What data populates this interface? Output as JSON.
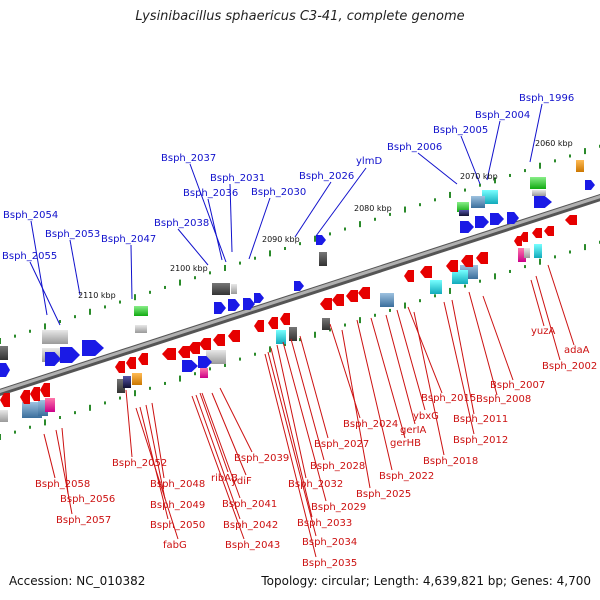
{
  "title": "Lysinibacillus sphaericus C3-41, complete genome",
  "accession": "Accession: NC_010382",
  "summary": "Topology: circular; Length: 4,639,821 bp; Genes: 4,700",
  "colors": {
    "backbone": "#8c8c8c",
    "forward_gene": "#1a1ae6",
    "reverse_gene": "#e60000",
    "blue_label": "#1111cc",
    "red_label": "#cc1111",
    "tick": "#2a8a2a"
  },
  "scale_labels": [
    "2060 kbp",
    "2070 kbp",
    "2080 kbp",
    "2090 kbp",
    "2100 kbp",
    "2110 kbp"
  ],
  "forward_labels": [
    "Bsph_1996",
    "Bsph_2004",
    "Bsph_2005",
    "Bsph_2006",
    "ylmD",
    "Bsph_2026",
    "Bsph_2030",
    "Bsph_2031",
    "Bsph_2036",
    "Bsph_2037",
    "Bsph_2038",
    "Bsph_2047",
    "Bsph_2053",
    "Bsph_2054",
    "Bsph_2055"
  ],
  "reverse_labels": [
    "Bsph_2002",
    "adaA",
    "yuzA",
    "Bsph_2007",
    "Bsph_2008",
    "Bsph_2011",
    "Bsph_2012",
    "Bsph_2015",
    "ybxG",
    "gerIA",
    "gerHB",
    "Bsph_2018",
    "Bsph_2022",
    "Bsph_2024",
    "Bsph_2025",
    "Bsph_2027",
    "Bsph_2028",
    "Bsph_2029",
    "Bsph_2032",
    "Bsph_2033",
    "Bsph_2034",
    "Bsph_2035",
    "Bsph_2039",
    "ydiF",
    "ribAB",
    "Bsph_2041",
    "Bsph_2042",
    "Bsph_2043",
    "Bsph_2048",
    "Bsph_2049",
    "Bsph_2050",
    "fabG",
    "Bsph_2052",
    "Bsph_2056",
    "Bsph_2057",
    "Bsph_2058"
  ]
}
